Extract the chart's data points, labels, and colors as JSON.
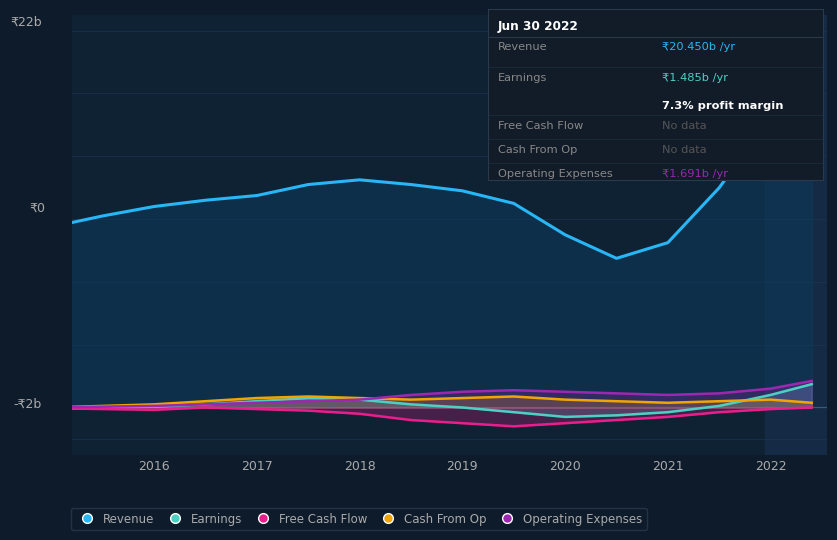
{
  "bg_color": "#0d1b2a",
  "chart_bg_color": "#0f2233",
  "ylabel_22b": "₹22b",
  "ylabel_0": "₹0",
  "ylabel_neg2b": "-₹2b",
  "x_ticks": [
    2016,
    2017,
    2018,
    2019,
    2020,
    2021,
    2022
  ],
  "vertical_line_x": 2022.0,
  "legend_items": [
    "Revenue",
    "Earnings",
    "Free Cash Flow",
    "Cash From Op",
    "Operating Expenses"
  ],
  "legend_colors": [
    "#29b6f6",
    "#4dd0c4",
    "#e91e8c",
    "#f0a500",
    "#9c27b0"
  ],
  "revenue_x": [
    2015.0,
    2015.5,
    2016.0,
    2016.5,
    2017.0,
    2017.5,
    2018.0,
    2018.5,
    2019.0,
    2019.5,
    2020.0,
    2020.5,
    2021.0,
    2021.5,
    2022.0,
    2022.4
  ],
  "revenue_y": [
    11.5,
    12.2,
    12.8,
    13.2,
    13.5,
    14.2,
    14.5,
    14.2,
    13.8,
    13.0,
    11.0,
    9.5,
    10.5,
    14.0,
    18.5,
    20.45
  ],
  "earnings_x": [
    2015.0,
    2015.5,
    2016.0,
    2016.5,
    2017.0,
    2017.5,
    2018.0,
    2018.5,
    2019.0,
    2019.5,
    2020.0,
    2020.5,
    2021.0,
    2021.5,
    2022.0,
    2022.4
  ],
  "earnings_y": [
    -0.1,
    0.0,
    0.05,
    0.2,
    0.4,
    0.6,
    0.5,
    0.2,
    0.0,
    -0.3,
    -0.6,
    -0.5,
    -0.3,
    0.1,
    0.8,
    1.485
  ],
  "fcf_x": [
    2015.0,
    2015.5,
    2016.0,
    2016.5,
    2017.0,
    2017.5,
    2018.0,
    2018.5,
    2019.0,
    2019.5,
    2020.0,
    2020.5,
    2021.0,
    2021.5,
    2022.0,
    2022.4
  ],
  "fcf_y": [
    -0.05,
    -0.1,
    -0.15,
    0.0,
    -0.1,
    -0.2,
    -0.4,
    -0.8,
    -1.0,
    -1.2,
    -1.0,
    -0.8,
    -0.6,
    -0.3,
    -0.1,
    0.0
  ],
  "cashfromop_x": [
    2015.0,
    2015.5,
    2016.0,
    2016.5,
    2017.0,
    2017.5,
    2018.0,
    2018.5,
    2019.0,
    2019.5,
    2020.0,
    2020.5,
    2021.0,
    2021.5,
    2022.0,
    2022.4
  ],
  "cashfromop_y": [
    0.0,
    0.1,
    0.2,
    0.4,
    0.6,
    0.7,
    0.6,
    0.5,
    0.6,
    0.7,
    0.5,
    0.4,
    0.3,
    0.4,
    0.5,
    0.3
  ],
  "opex_x": [
    2015.0,
    2015.5,
    2016.0,
    2016.5,
    2017.0,
    2017.5,
    2018.0,
    2018.5,
    2019.0,
    2019.5,
    2020.0,
    2020.5,
    2021.0,
    2021.5,
    2022.0,
    2022.4
  ],
  "opex_y": [
    0.0,
    0.05,
    0.1,
    0.2,
    0.3,
    0.4,
    0.5,
    0.8,
    1.0,
    1.1,
    1.0,
    0.9,
    0.8,
    0.9,
    1.2,
    1.691
  ],
  "tooltip": {
    "date": "Jun 30 2022",
    "revenue_label": "Revenue",
    "revenue_val": "₹20.450b /yr",
    "earnings_label": "Earnings",
    "earnings_val": "₹1.485b /yr",
    "profit_margin": "7.3% profit margin",
    "fcf_label": "Free Cash Flow",
    "fcf_val": "No data",
    "cashfromop_label": "Cash From Op",
    "cashfromop_val": "No data",
    "opex_label": "Operating Expenses",
    "opex_val": "₹1.691b /yr"
  },
  "revenue_color": "#29b6f6",
  "earnings_color": "#4dd0c4",
  "fcf_color": "#e91e8c",
  "cashfromop_color": "#f0a500",
  "opex_color": "#9c27b0",
  "revenue_fill_color": "#0d3a5c",
  "ylim": [
    -3.0,
    25.0
  ],
  "xlim": [
    2015.2,
    2022.55
  ]
}
